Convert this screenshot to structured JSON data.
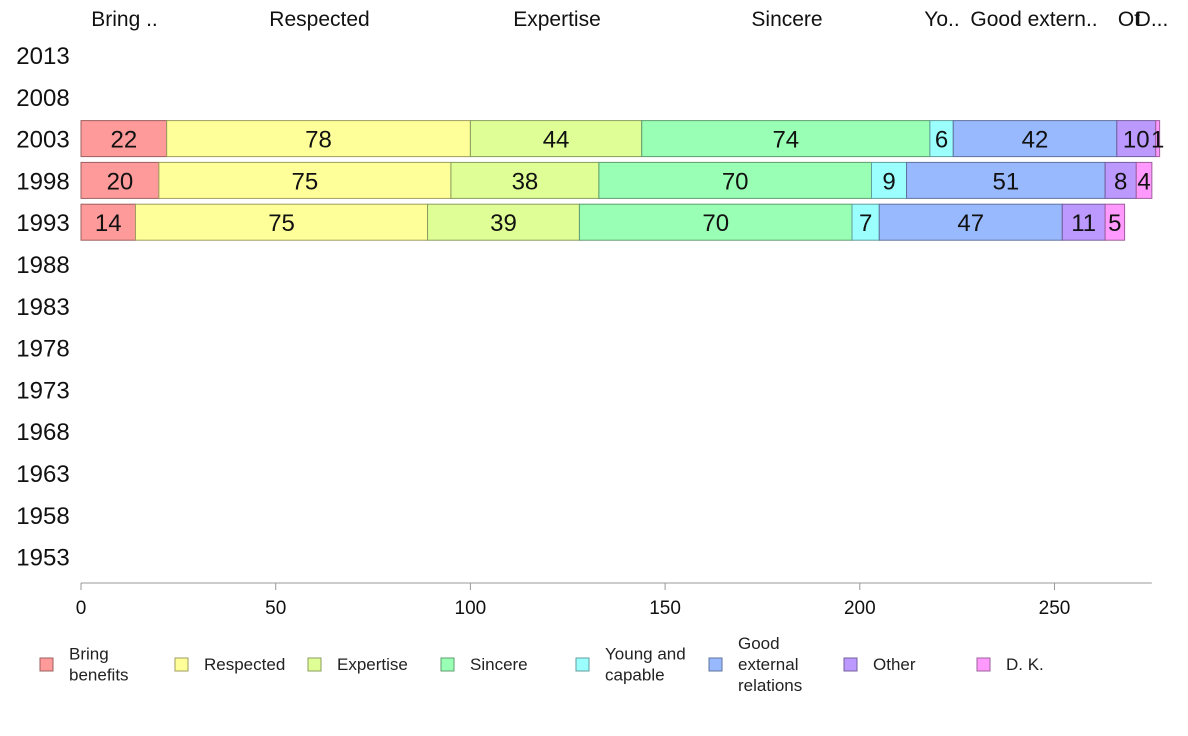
{
  "chart_data": {
    "type": "bar",
    "orientation": "horizontal",
    "stacked": true,
    "categories": [
      "2013",
      "2008",
      "2003",
      "1998",
      "1993",
      "1988",
      "1983",
      "1978",
      "1973",
      "1968",
      "1963",
      "1958",
      "1953"
    ],
    "column_labels": [
      "Bring ..",
      "Respected",
      "Expertise",
      "Sincere",
      "Yo..",
      "Good extern..",
      "Ot",
      "D..."
    ],
    "series": [
      {
        "name": "Bring benefits",
        "legend_lines": [
          "Bring",
          "benefits"
        ],
        "color": "#ff9a9a",
        "values": [
          null,
          null,
          22,
          20,
          14,
          null,
          null,
          null,
          null,
          null,
          null,
          null,
          null
        ],
        "labels": [
          "",
          "",
          "22",
          "20",
          "14",
          "",
          "",
          "",
          "",
          "",
          "",
          "",
          ""
        ]
      },
      {
        "name": "Respected",
        "legend_lines": [
          "Respected"
        ],
        "color": "#ffff99",
        "values": [
          null,
          null,
          78,
          75,
          75,
          null,
          null,
          null,
          null,
          null,
          null,
          null,
          null
        ],
        "labels": [
          "",
          "",
          "78",
          "75",
          "75",
          "",
          "",
          "",
          "",
          "",
          "",
          "",
          ""
        ]
      },
      {
        "name": "Expertise",
        "legend_lines": [
          "Expertise"
        ],
        "color": "#dfff96",
        "values": [
          null,
          null,
          44,
          38,
          39,
          null,
          null,
          null,
          null,
          null,
          null,
          null,
          null
        ],
        "labels": [
          "",
          "",
          "44",
          "38",
          "39",
          "",
          "",
          "",
          "",
          "",
          "",
          "",
          ""
        ]
      },
      {
        "name": "Sincere",
        "legend_lines": [
          "Sincere"
        ],
        "color": "#99ffb4",
        "values": [
          null,
          null,
          74,
          70,
          70,
          null,
          null,
          null,
          null,
          null,
          null,
          null,
          null
        ],
        "labels": [
          "",
          "",
          "74",
          "70",
          "70",
          "",
          "",
          "",
          "",
          "",
          "",
          "",
          ""
        ]
      },
      {
        "name": "Young and capable",
        "legend_lines": [
          "Young and",
          "capable"
        ],
        "color": "#9bfffd",
        "values": [
          null,
          null,
          6,
          9,
          7,
          null,
          null,
          null,
          null,
          null,
          null,
          null,
          null
        ],
        "labels": [
          "",
          "",
          "6",
          "9",
          "7",
          "",
          "",
          "",
          "",
          "",
          "",
          "",
          ""
        ]
      },
      {
        "name": "Good external relations",
        "legend_lines": [
          "Good",
          "external",
          "relations"
        ],
        "color": "#99b9ff",
        "values": [
          null,
          null,
          42,
          51,
          47,
          null,
          null,
          null,
          null,
          null,
          null,
          null,
          null
        ],
        "labels": [
          "",
          "",
          "42",
          "51",
          "47",
          "",
          "",
          "",
          "",
          "",
          "",
          "",
          ""
        ]
      },
      {
        "name": "Other",
        "legend_lines": [
          "Other"
        ],
        "color": "#bb99ff",
        "values": [
          null,
          null,
          10,
          8,
          11,
          null,
          null,
          null,
          null,
          null,
          null,
          null,
          null
        ],
        "labels": [
          "",
          "",
          "10",
          "8",
          "11",
          "",
          "",
          "",
          "",
          "",
          "",
          "",
          ""
        ]
      },
      {
        "name": "D. K.",
        "legend_lines": [
          "D. K."
        ],
        "color": "#ff99fd",
        "values": [
          null,
          null,
          1,
          4,
          5,
          null,
          null,
          null,
          null,
          null,
          null,
          null,
          null
        ],
        "labels": [
          "",
          "",
          "1",
          "4",
          "5",
          "",
          "",
          "",
          "",
          "",
          "",
          "",
          ""
        ]
      }
    ],
    "xlim": [
      0,
      275
    ],
    "xticks": [
      0,
      50,
      100,
      150,
      200,
      250
    ],
    "xlabel": "",
    "ylabel": "",
    "title": "",
    "grid": false,
    "legend_position": "bottom"
  }
}
